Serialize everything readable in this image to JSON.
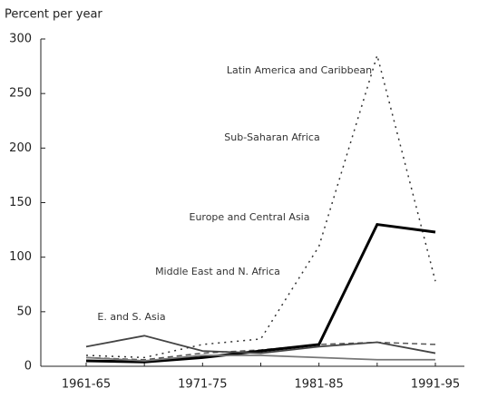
{
  "chart_data": {
    "type": "line",
    "y_label": "Percent per year",
    "categories": [
      "1961-65",
      null,
      "1971-75",
      null,
      "1981-85",
      null,
      "1991-95"
    ],
    "ylim": [
      0,
      300
    ],
    "yticks": [
      0,
      50,
      100,
      150,
      200,
      250,
      300
    ],
    "series": [
      {
        "name": "Latin America and Caribbean",
        "color": "#333333",
        "line_style": "dotted",
        "values": [
          10,
          8,
          20,
          25,
          110,
          285,
          78
        ]
      },
      {
        "name": "Sub-Saharan Africa",
        "color": "#555555",
        "line_style": "dashed",
        "values": [
          8,
          6,
          12,
          15,
          20,
          22,
          20
        ]
      },
      {
        "name": "Europe and Central Asia",
        "color": "#000000",
        "line_style": "bold",
        "values": [
          5,
          4,
          8,
          14,
          20,
          130,
          123
        ]
      },
      {
        "name": "Middle East and N. Africa",
        "color": "#444444",
        "line_style": "solid",
        "values": [
          18,
          28,
          14,
          12,
          18,
          22,
          12
        ]
      },
      {
        "name": "E. and S. Asia",
        "color": "#777777",
        "line_style": "solid",
        "values": [
          8,
          5,
          10,
          10,
          8,
          6,
          6
        ]
      }
    ]
  }
}
